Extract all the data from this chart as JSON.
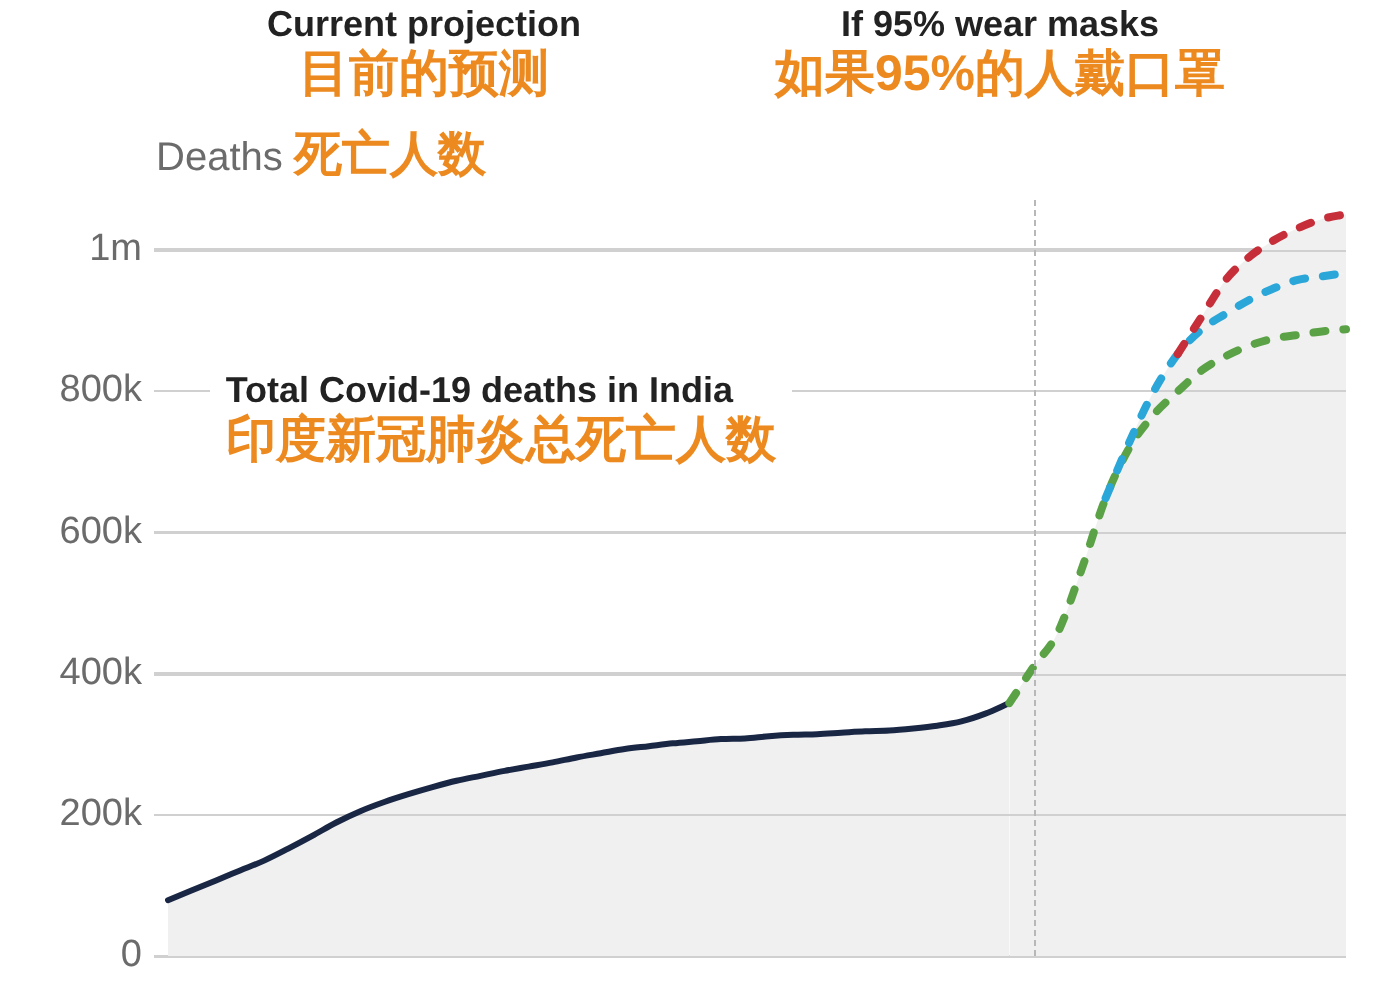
{
  "chart_data": {
    "type": "area",
    "annotations": [
      "Current projection\n目前的预测",
      "If 95% wear masks\n如果95%的人戴口罩",
      "Total Covid-19 deaths in India\n印度新冠肺炎总死亡人数"
    ],
    "ylabel": "Deaths 死亡人数",
    "categories": [
      null,
      null,
      null,
      null,
      null,
      null,
      null,
      null,
      null,
      null,
      null,
      null,
      null,
      null,
      null,
      null,
      null,
      null,
      null,
      null,
      null,
      null,
      null,
      null,
      null,
      null,
      null,
      null,
      null,
      null,
      null,
      null,
      null,
      null,
      null,
      null,
      null,
      null,
      null,
      null,
      null,
      null,
      null,
      null,
      null,
      null,
      null,
      null,
      null,
      null
    ],
    "series": [
      {
        "color": "#1a2744",
        "line_style": "solid",
        "values": [
          79000,
          93000,
          107000,
          121000,
          135000,
          152000,
          170000,
          189000,
          205000,
          218000,
          229000,
          239000,
          248000,
          255000,
          262000,
          268000,
          274000,
          281000,
          287000,
          293000,
          297000,
          301000,
          304000,
          307000,
          308000,
          311000,
          313000,
          314000,
          316000,
          318000,
          319000,
          322000,
          326000,
          332000,
          343000,
          358000,
          null,
          null,
          null,
          null,
          null,
          null,
          null,
          null,
          null,
          null,
          null,
          null,
          null,
          null
        ]
      },
      {
        "color": "#5ba246",
        "line_style": "dashed",
        "values": [
          null,
          null,
          null,
          null,
          null,
          null,
          null,
          null,
          null,
          null,
          null,
          null,
          null,
          null,
          null,
          null,
          null,
          null,
          null,
          null,
          null,
          null,
          null,
          null,
          null,
          null,
          null,
          null,
          null,
          null,
          null,
          null,
          null,
          null,
          null,
          358000,
          409000,
          457000,
          547000,
          648000,
          720000,
          766000,
          799000,
          829000,
          849000,
          864000,
          874000,
          879000,
          884000,
          887000
        ]
      },
      {
        "color": "#2aa6d9",
        "line_style": "dashed",
        "values": [
          null,
          null,
          null,
          null,
          null,
          null,
          null,
          null,
          null,
          null,
          null,
          null,
          null,
          null,
          null,
          null,
          null,
          null,
          null,
          null,
          null,
          null,
          null,
          null,
          null,
          null,
          null,
          null,
          null,
          null,
          null,
          null,
          null,
          null,
          null,
          null,
          null,
          null,
          null,
          648000,
          728000,
          799000,
          852000,
          887000,
          909000,
          929000,
          945000,
          957000,
          962000,
          967000
        ]
      },
      {
        "color": "#c62f3a",
        "line_style": "dashed",
        "values": [
          null,
          null,
          null,
          null,
          null,
          null,
          null,
          null,
          null,
          null,
          null,
          null,
          null,
          null,
          null,
          null,
          null,
          null,
          null,
          null,
          null,
          null,
          null,
          null,
          null,
          null,
          null,
          null,
          null,
          null,
          null,
          null,
          null,
          null,
          null,
          null,
          null,
          null,
          null,
          null,
          null,
          null,
          852000,
          905000,
          957000,
          990000,
          1013000,
          1030000,
          1043000,
          1050000
        ]
      }
    ],
    "ylim": [
      0,
      1070000
    ],
    "yticks": [
      0,
      {
        "value": 200000,
        "label": "200k"
      },
      {
        "value": 400000,
        "label": "400k"
      },
      {
        "value": 600000,
        "label": "600k"
      },
      {
        "value": 800000,
        "label": "800k"
      },
      {
        "value": 1000000,
        "label": "1m"
      }
    ],
    "grid": "y",
    "tick_labels": "y"
  }
}
